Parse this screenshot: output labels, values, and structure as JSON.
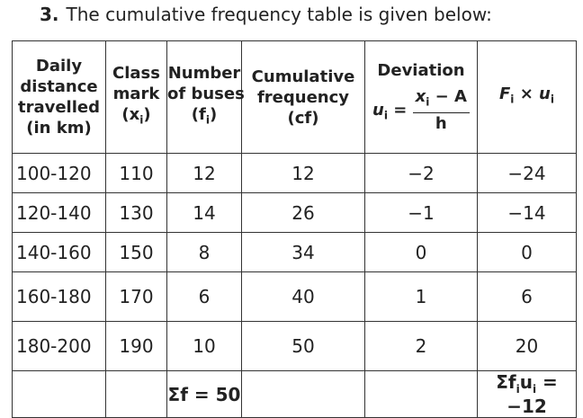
{
  "heading": {
    "number": "3.",
    "text": "The cumulative frequency table is given below:"
  },
  "table": {
    "header": [
      {
        "lines": [
          "Daily",
          "distance",
          "travelled",
          "(in km)"
        ]
      },
      {
        "lines": [
          "Class",
          "mark",
          [
            "(x",
            "i",
            ")"
          ]
        ]
      },
      {
        "lines": [
          "Number",
          "of buses",
          [
            "(f",
            "i",
            ")"
          ]
        ]
      },
      {
        "lines": [
          "Cumulative",
          "frequency",
          "(cf)"
        ]
      },
      {
        "title": "Deviation",
        "lhs": [
          "u",
          "i",
          "="
        ],
        "numerator": [
          "x",
          "i",
          " − A"
        ],
        "denominator": "h"
      },
      {
        "parts": [
          "F",
          "i",
          " × u",
          "i"
        ]
      }
    ],
    "rows": [
      [
        "100-120",
        "110",
        "12",
        "12",
        "−2",
        "−24"
      ],
      [
        "120-140",
        "130",
        "14",
        "26",
        "−1",
        "−14"
      ],
      [
        "140-160",
        "150",
        "8",
        "34",
        "0",
        "0"
      ],
      [
        "160-180",
        "170",
        "6",
        "40",
        "1",
        "6"
      ],
      [
        "180-200",
        "190",
        "10",
        "50",
        "2",
        "20"
      ]
    ],
    "footer": {
      "sum_f": "Σf = 50",
      "sum_fu": [
        "Σf",
        "i",
        "u",
        "i",
        " = −12"
      ]
    }
  }
}
